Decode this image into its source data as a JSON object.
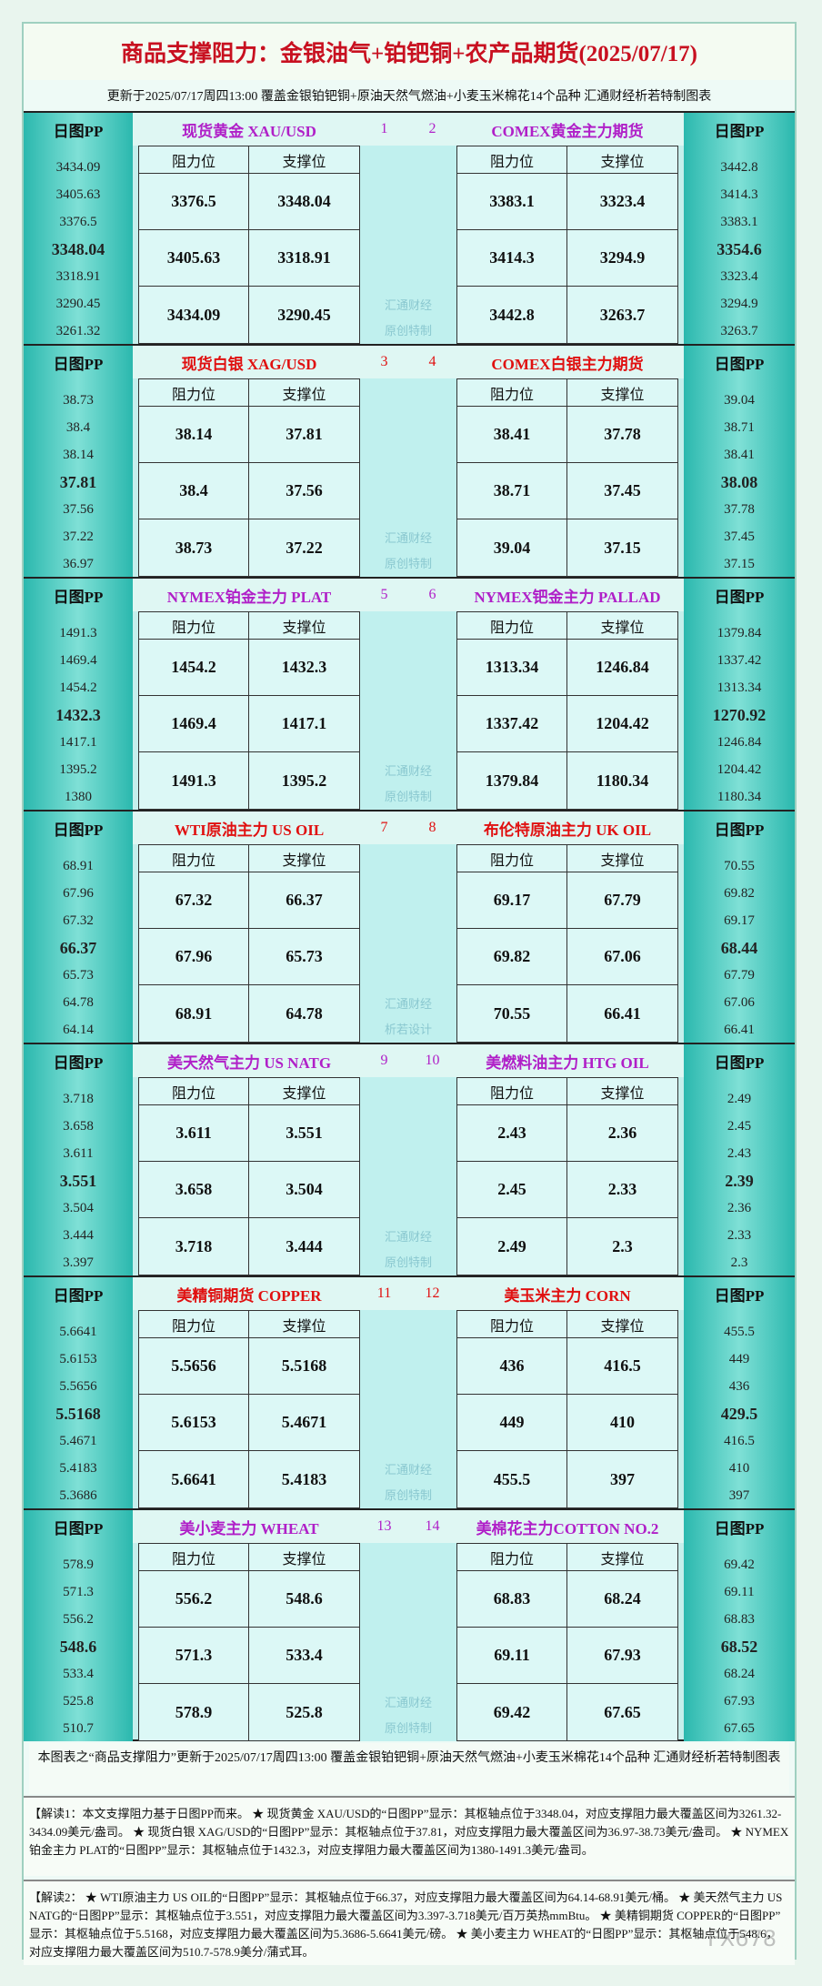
{
  "header": {
    "title": "商品支撑阻力：金银油气+铂钯铜+农产品期货(2025/07/17)",
    "subtitle": "更新于2025/07/17周四13:00  覆盖金银铂钯铜+原油天然气燃油+小麦玉米棉花14个品种  汇通财经析若特制图表"
  },
  "blocks": [
    {
      "color": "#b020c8",
      "watermark": [
        "汇通财经",
        "原创特制"
      ],
      "left": {
        "pp_label": "日图PP",
        "name": "现货黄金 XAU/USD",
        "number": "1",
        "pp": [
          "3434.09",
          "3405.63",
          "3376.5",
          "3348.04",
          "3318.91",
          "3290.45",
          "3261.32"
        ],
        "table": {
          "header": [
            "阻力位",
            "支撑位"
          ],
          "rows": [
            [
              "3376.5",
              "3348.04"
            ],
            [
              "3405.63",
              "3318.91"
            ],
            [
              "3434.09",
              "3290.45"
            ]
          ]
        }
      },
      "right": {
        "pp_label": "日图PP",
        "name": "COMEX黄金主力期货",
        "number": "2",
        "pp": [
          "3442.8",
          "3414.3",
          "3383.1",
          "3354.6",
          "3323.4",
          "3294.9",
          "3263.7"
        ],
        "table": {
          "header": [
            "阻力位",
            "支撑位"
          ],
          "rows": [
            [
              "3383.1",
              "3323.4"
            ],
            [
              "3414.3",
              "3294.9"
            ],
            [
              "3442.8",
              "3263.7"
            ]
          ]
        }
      }
    },
    {
      "color": "#e01010",
      "watermark": [
        "汇通财经",
        "原创特制"
      ],
      "left": {
        "pp_label": "日图PP",
        "name": "现货白银 XAG/USD",
        "number": "3",
        "pp": [
          "38.73",
          "38.4",
          "38.14",
          "37.81",
          "37.56",
          "37.22",
          "36.97"
        ],
        "table": {
          "header": [
            "阻力位",
            "支撑位"
          ],
          "rows": [
            [
              "38.14",
              "37.81"
            ],
            [
              "38.4",
              "37.56"
            ],
            [
              "38.73",
              "37.22"
            ]
          ]
        }
      },
      "right": {
        "pp_label": "日图PP",
        "name": "COMEX白银主力期货",
        "number": "4",
        "pp": [
          "39.04",
          "38.71",
          "38.41",
          "38.08",
          "37.78",
          "37.45",
          "37.15"
        ],
        "table": {
          "header": [
            "阻力位",
            "支撑位"
          ],
          "rows": [
            [
              "38.41",
              "37.78"
            ],
            [
              "38.71",
              "37.45"
            ],
            [
              "39.04",
              "37.15"
            ]
          ]
        }
      }
    },
    {
      "color": "#b020c8",
      "watermark": [
        "汇通财经",
        "原创特制"
      ],
      "left": {
        "pp_label": "日图PP",
        "name": "NYMEX铂金主力 PLAT",
        "number": "5",
        "pp": [
          "1491.3",
          "1469.4",
          "1454.2",
          "1432.3",
          "1417.1",
          "1395.2",
          "1380"
        ],
        "table": {
          "header": [
            "阻力位",
            "支撑位"
          ],
          "rows": [
            [
              "1454.2",
              "1432.3"
            ],
            [
              "1469.4",
              "1417.1"
            ],
            [
              "1491.3",
              "1395.2"
            ]
          ]
        }
      },
      "right": {
        "pp_label": "日图PP",
        "name": "NYMEX钯金主力 PALLAD",
        "number": "6",
        "pp": [
          "1379.84",
          "1337.42",
          "1313.34",
          "1270.92",
          "1246.84",
          "1204.42",
          "1180.34"
        ],
        "table": {
          "header": [
            "阻力位",
            "支撑位"
          ],
          "rows": [
            [
              "1313.34",
              "1246.84"
            ],
            [
              "1337.42",
              "1204.42"
            ],
            [
              "1379.84",
              "1180.34"
            ]
          ]
        }
      }
    },
    {
      "color": "#e01010",
      "watermark": [
        "汇通财经",
        "析若设计"
      ],
      "left": {
        "pp_label": "日图PP",
        "name": "WTI原油主力 US OIL",
        "number": "7",
        "pp": [
          "68.91",
          "67.96",
          "67.32",
          "66.37",
          "65.73",
          "64.78",
          "64.14"
        ],
        "table": {
          "header": [
            "阻力位",
            "支撑位"
          ],
          "rows": [
            [
              "67.32",
              "66.37"
            ],
            [
              "67.96",
              "65.73"
            ],
            [
              "68.91",
              "64.78"
            ]
          ]
        }
      },
      "right": {
        "pp_label": "日图PP",
        "name": "布伦特原油主力 UK OIL",
        "number": "8",
        "pp": [
          "70.55",
          "69.82",
          "69.17",
          "68.44",
          "67.79",
          "67.06",
          "66.41"
        ],
        "table": {
          "header": [
            "阻力位",
            "支撑位"
          ],
          "rows": [
            [
              "69.17",
              "67.79"
            ],
            [
              "69.82",
              "67.06"
            ],
            [
              "70.55",
              "66.41"
            ]
          ]
        }
      }
    },
    {
      "color": "#b020c8",
      "watermark": [
        "汇通财经",
        "原创特制"
      ],
      "left": {
        "pp_label": "日图PP",
        "name": "美天然气主力 US NATG",
        "number": "9",
        "pp": [
          "3.718",
          "3.658",
          "3.611",
          "3.551",
          "3.504",
          "3.444",
          "3.397"
        ],
        "table": {
          "header": [
            "阻力位",
            "支撑位"
          ],
          "rows": [
            [
              "3.611",
              "3.551"
            ],
            [
              "3.658",
              "3.504"
            ],
            [
              "3.718",
              "3.444"
            ]
          ]
        }
      },
      "right": {
        "pp_label": "日图PP",
        "name": "美燃料油主力 HTG OIL",
        "number": "10",
        "pp": [
          "2.49",
          "2.45",
          "2.43",
          "2.39",
          "2.36",
          "2.33",
          "2.3"
        ],
        "table": {
          "header": [
            "阻力位",
            "支撑位"
          ],
          "rows": [
            [
              "2.43",
              "2.36"
            ],
            [
              "2.45",
              "2.33"
            ],
            [
              "2.49",
              "2.3"
            ]
          ]
        }
      }
    },
    {
      "color": "#e01010",
      "watermark": [
        "汇通财经",
        "原创特制"
      ],
      "left": {
        "pp_label": "日图PP",
        "name": "美精铜期货 COPPER",
        "number": "11",
        "pp": [
          "5.6641",
          "5.6153",
          "5.5656",
          "5.5168",
          "5.4671",
          "5.4183",
          "5.3686"
        ],
        "table": {
          "header": [
            "阻力位",
            "支撑位"
          ],
          "rows": [
            [
              "5.5656",
              "5.5168"
            ],
            [
              "5.6153",
              "5.4671"
            ],
            [
              "5.6641",
              "5.4183"
            ]
          ]
        }
      },
      "right": {
        "pp_label": "日图PP",
        "name": "美玉米主力 CORN",
        "number": "12",
        "pp": [
          "455.5",
          "449",
          "436",
          "429.5",
          "416.5",
          "410",
          "397"
        ],
        "table": {
          "header": [
            "阻力位",
            "支撑位"
          ],
          "rows": [
            [
              "436",
              "416.5"
            ],
            [
              "449",
              "410"
            ],
            [
              "455.5",
              "397"
            ]
          ]
        }
      }
    },
    {
      "color": "#b020c8",
      "watermark": [
        "汇通财经",
        "原创特制"
      ],
      "left": {
        "pp_label": "日图PP",
        "name": "美小麦主力 WHEAT",
        "number": "13",
        "pp": [
          "578.9",
          "571.3",
          "556.2",
          "548.6",
          "533.4",
          "525.8",
          "510.7"
        ],
        "table": {
          "header": [
            "阻力位",
            "支撑位"
          ],
          "rows": [
            [
              "556.2",
              "548.6"
            ],
            [
              "571.3",
              "533.4"
            ],
            [
              "578.9",
              "525.8"
            ]
          ]
        }
      },
      "right": {
        "pp_label": "日图PP",
        "name": "美棉花主力COTTON NO.2",
        "number": "14",
        "pp": [
          "69.42",
          "69.11",
          "68.83",
          "68.52",
          "68.24",
          "67.93",
          "67.65"
        ],
        "table": {
          "header": [
            "阻力位",
            "支撑位"
          ],
          "rows": [
            [
              "68.83",
              "68.24"
            ],
            [
              "69.11",
              "67.93"
            ],
            [
              "69.42",
              "67.65"
            ]
          ]
        }
      }
    }
  ],
  "footer": {
    "note": "本图表之“商品支撑阻力”更新于2025/07/17周四13:00 覆盖金银铂钯铜+原油天然气燃油+小麦玉米棉花14个品种 汇通财经析若特制图表",
    "explain1": "【解读1：本文支撑阻力基于日图PP而来。 ★ 现货黄金 XAU/USD的“日图PP”显示：其枢轴点位于3348.04，对应支撑阻力最大覆盖区间为3261.32-3434.09美元/盎司。 ★ 现货白银 XAG/USD的“日图PP”显示：其枢轴点位于37.81，对应支撑阻力最大覆盖区间为36.97-38.73美元/盎司。 ★ NYMEX铂金主力 PLAT的“日图PP”显示：其枢轴点位于1432.3，对应支撑阻力最大覆盖区间为1380-1491.3美元/盎司。",
    "explain2": "【解读2： ★ WTI原油主力 US OIL的“日图PP”显示：其枢轴点位于66.37，对应支撑阻力最大覆盖区间为64.14-68.91美元/桶。 ★ 美天然气主力 US NATG的“日图PP”显示：其枢轴点位于3.551，对应支撑阻力最大覆盖区间为3.397-3.718美元/百万英热mmBtu。 ★ 美精铜期货 COPPER的“日图PP”显示：其枢轴点位于5.5168，对应支撑阻力最大覆盖区间为5.3686-5.6641美元/磅。 ★ 美小麦主力 WHEAT的“日图PP”显示：其枢轴点位于548.6，对应支撑阻力最大覆盖区间为510.7-578.9美分/蒲式耳。",
    "watermark": "FX678"
  }
}
